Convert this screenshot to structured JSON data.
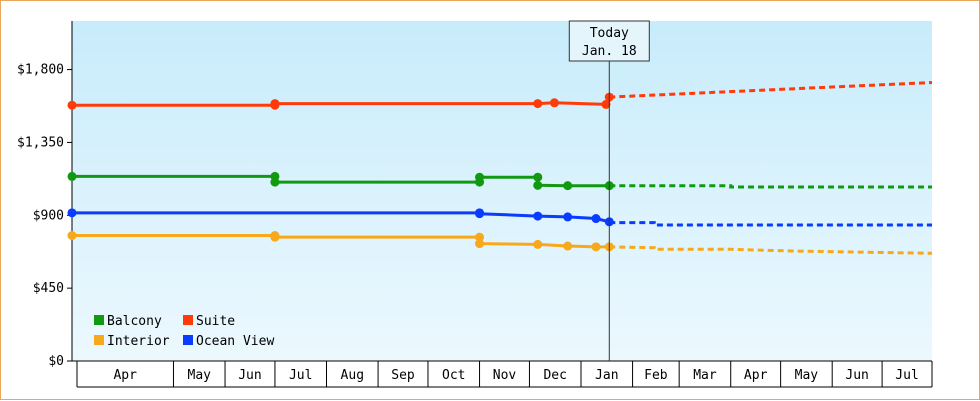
{
  "chart_data": {
    "type": "line",
    "title": "",
    "xlabel": "",
    "ylabel": "",
    "ylim": [
      0,
      2100
    ],
    "y_ticks": [
      "$0",
      "$450",
      "$900",
      "$1,350",
      "$1,800"
    ],
    "y_tick_values": [
      0,
      450,
      900,
      1350,
      1800
    ],
    "x_ticks": [
      "Apr",
      "May",
      "Jun",
      "Jul",
      "Aug",
      "Sep",
      "Oct",
      "Nov",
      "Dec",
      "Jan",
      "Feb",
      "Mar",
      "Apr",
      "May",
      "Jun",
      "Jul"
    ],
    "today": {
      "label_line1": "Today",
      "label_line2": "Jan. 18",
      "x": "2019-01-18"
    },
    "background_gradient": [
      "#c8ecfb",
      "#ecf8fe"
    ],
    "legend": {
      "placement": "bottom-left"
    },
    "series": [
      {
        "name": "Balcony",
        "color": "#119911",
        "actual": [
          [
            "2018-03-01",
            1140
          ],
          [
            "2018-07-01",
            1140
          ],
          [
            "2018-07-01",
            1105
          ],
          [
            "2018-11-01",
            1105
          ],
          [
            "2018-11-01",
            1135
          ],
          [
            "2018-12-06",
            1135
          ],
          [
            "2018-12-06",
            1085
          ],
          [
            "2018-12-24",
            1083
          ],
          [
            "2019-01-18",
            1083
          ]
        ],
        "forecast": [
          [
            "2019-01-18",
            1083
          ],
          [
            "2019-04-01",
            1083
          ],
          [
            "2019-04-01",
            1075
          ],
          [
            "2019-07-31",
            1075
          ]
        ]
      },
      {
        "name": "Suite",
        "color": "#ff3b0a",
        "actual": [
          [
            "2018-03-01",
            1580
          ],
          [
            "2018-07-01",
            1580
          ],
          [
            "2018-07-01",
            1590
          ],
          [
            "2018-12-06",
            1590
          ],
          [
            "2018-12-16",
            1595
          ],
          [
            "2019-01-16",
            1585
          ],
          [
            "2019-01-18",
            1630
          ]
        ],
        "forecast": [
          [
            "2019-01-18",
            1630
          ],
          [
            "2019-07-31",
            1720
          ]
        ]
      },
      {
        "name": "Interior",
        "color": "#f7a81b",
        "actual": [
          [
            "2018-03-01",
            775
          ],
          [
            "2018-07-01",
            775
          ],
          [
            "2018-07-01",
            765
          ],
          [
            "2018-11-01",
            765
          ],
          [
            "2018-11-01",
            725
          ],
          [
            "2018-12-06",
            720
          ],
          [
            "2018-12-24",
            710
          ],
          [
            "2019-01-10",
            705
          ],
          [
            "2019-01-18",
            705
          ]
        ],
        "forecast": [
          [
            "2019-01-18",
            705
          ],
          [
            "2019-02-14",
            700
          ],
          [
            "2019-02-14",
            690
          ],
          [
            "2019-04-01",
            690
          ],
          [
            "2019-05-05",
            680
          ],
          [
            "2019-07-31",
            665
          ]
        ]
      },
      {
        "name": "Ocean View",
        "color": "#0a3cff",
        "actual": [
          [
            "2018-03-01",
            915
          ],
          [
            "2018-11-01",
            915
          ],
          [
            "2018-11-01",
            910
          ],
          [
            "2018-12-06",
            895
          ],
          [
            "2018-12-24",
            890
          ],
          [
            "2019-01-10",
            880
          ],
          [
            "2019-01-18",
            860
          ]
        ],
        "forecast": [
          [
            "2019-01-18",
            855
          ],
          [
            "2019-02-14",
            855
          ],
          [
            "2019-02-14",
            840
          ],
          [
            "2019-07-31",
            840
          ]
        ]
      }
    ],
    "change_points": {
      "Balcony": [
        "2018-03-01",
        "2018-07-01",
        "2018-11-01",
        "2018-12-06",
        "2018-12-06",
        "2018-12-24",
        "2019-01-18"
      ],
      "Suite": [
        "2018-03-01",
        "2018-07-01",
        "2018-12-06",
        "2018-12-16",
        "2019-01-16",
        "2019-01-18"
      ],
      "Interior": [
        "2018-03-01",
        "2018-07-01",
        "2018-11-01",
        "2018-12-06",
        "2018-12-24",
        "2019-01-10",
        "2019-01-18"
      ],
      "Ocean View": [
        "2018-03-01",
        "2018-11-01",
        "2018-12-06",
        "2018-12-24",
        "2019-01-10",
        "2019-01-18"
      ]
    }
  }
}
